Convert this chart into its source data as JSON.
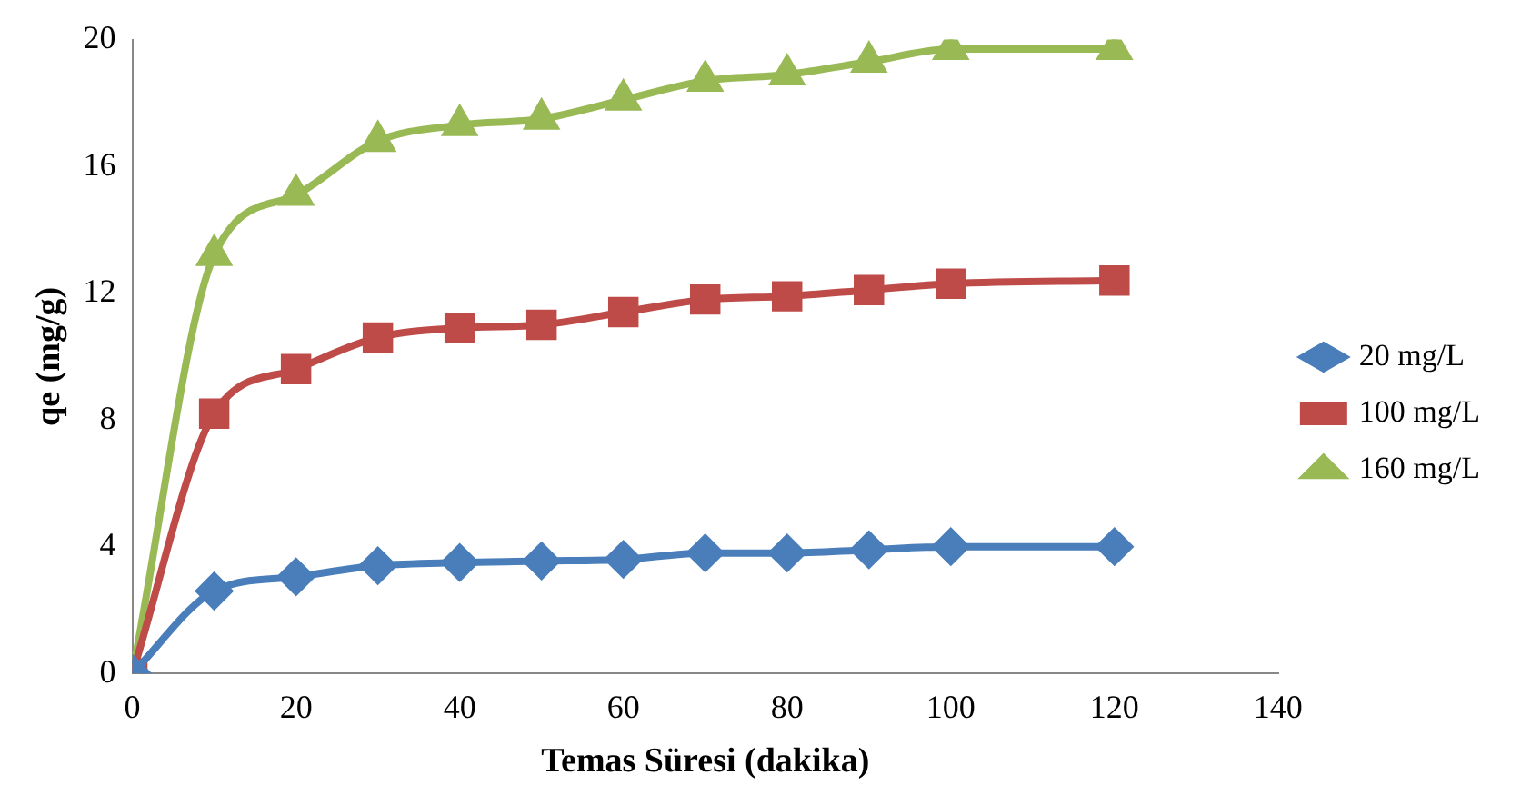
{
  "chart_data": {
    "type": "line",
    "xlabel": "Temas Süresi (dakika)",
    "ylabel": "qe (mg/g)",
    "xlim": [
      0,
      140
    ],
    "xticks": [
      0,
      20,
      40,
      60,
      80,
      100,
      120,
      140
    ],
    "ylim": [
      0,
      20
    ],
    "yticks": [
      0,
      4,
      8,
      12,
      16,
      20
    ],
    "grid": false,
    "legend": "right",
    "line_style": "solid",
    "x": [
      0,
      10,
      20,
      30,
      40,
      50,
      60,
      70,
      80,
      90,
      100,
      120
    ],
    "series": [
      {
        "name": "20 mg/L",
        "color": "#4a7ebb",
        "marker": "diamond",
        "values": [
          0,
          2.6,
          3.05,
          3.4,
          3.5,
          3.55,
          3.6,
          3.8,
          3.8,
          3.9,
          4.0,
          4.0
        ]
      },
      {
        "name": "100 mg/L",
        "color": "#be4b48",
        "marker": "square",
        "values": [
          0,
          8.2,
          9.6,
          10.6,
          10.9,
          11.0,
          11.4,
          11.8,
          11.9,
          12.1,
          12.3,
          12.4
        ]
      },
      {
        "name": "160 mg/L",
        "color": "#98b954",
        "marker": "triangle",
        "values": [
          0,
          13.2,
          15.1,
          16.8,
          17.3,
          17.5,
          18.1,
          18.7,
          18.9,
          19.3,
          19.7,
          19.7
        ]
      }
    ]
  }
}
